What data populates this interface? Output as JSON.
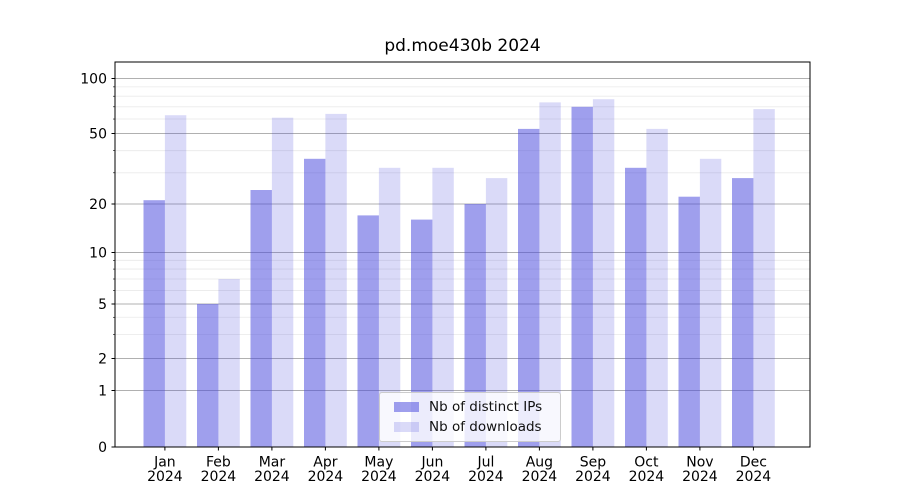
{
  "chart_data": {
    "type": "bar",
    "title": "pd.moe430b 2024",
    "categories": [
      "Jan",
      "Feb",
      "Mar",
      "Apr",
      "May",
      "Jun",
      "Jul",
      "Aug",
      "Sep",
      "Oct",
      "Nov",
      "Dec"
    ],
    "x_tick_second_line": "2024",
    "series": [
      {
        "name": "Nb of distinct IPs",
        "color": "rgba(70,70,220,0.52)",
        "values": [
          21,
          5,
          24,
          36,
          17,
          16,
          20,
          53,
          70,
          32,
          22,
          28
        ]
      },
      {
        "name": "Nb of downloads",
        "color": "rgba(70,70,220,0.20)",
        "values": [
          63,
          7,
          61,
          64,
          32,
          32,
          28,
          74,
          77,
          53,
          36,
          68
        ]
      }
    ],
    "y_axis": {
      "scale": "symlog",
      "ticks": [
        0,
        1,
        2,
        5,
        10,
        20,
        50,
        100
      ],
      "tick_labels": [
        "0",
        "1",
        "2",
        "5",
        "10",
        "20",
        "50",
        "100"
      ],
      "minor_ticks": [
        3,
        4,
        6,
        7,
        8,
        9,
        30,
        40,
        60,
        70,
        80,
        90
      ],
      "ylim": [
        0,
        115
      ]
    },
    "legend": {
      "position": "lower-center"
    },
    "grid": {
      "visible": true,
      "major_color": "#b0b0b0",
      "minor_color": "#e9e9e9"
    },
    "colors": {
      "axis": "#000000",
      "text": "#000000"
    }
  }
}
